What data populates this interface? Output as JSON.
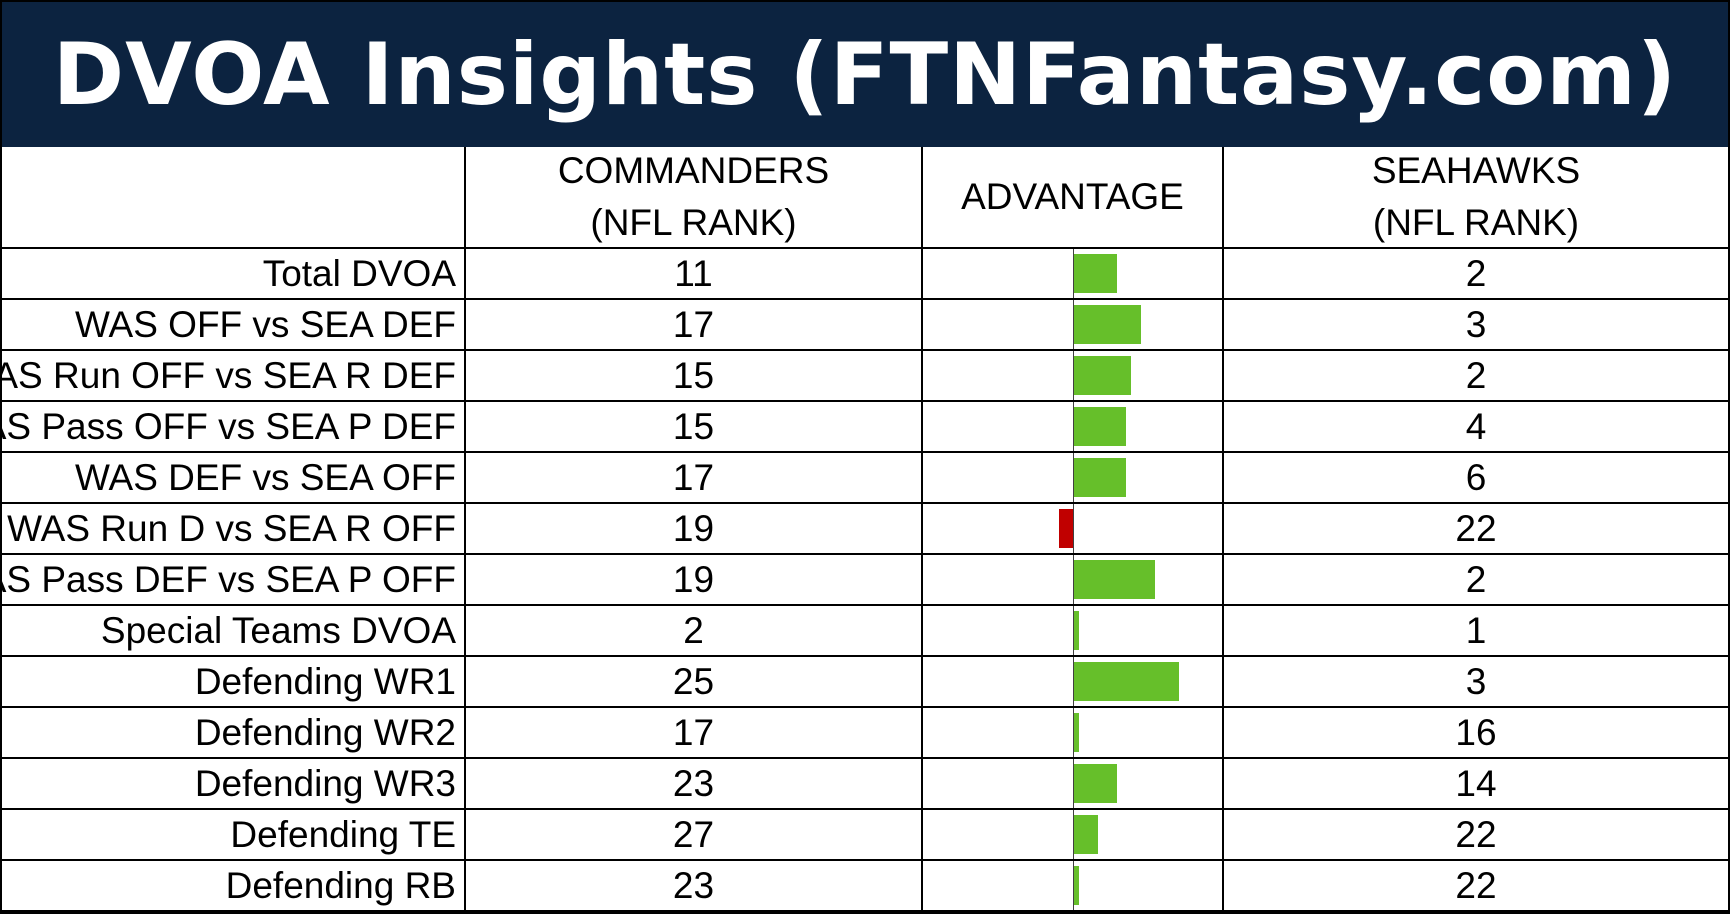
{
  "title": "DVOA Insights (FTNFantasy.com)",
  "headers": {
    "team1_line1": "COMMANDERS",
    "team1_line2": "(NFL RANK)",
    "advantage": "ADVANTAGE",
    "team2_line1": "SEAHAWKS",
    "team2_line2": "(NFL RANK)"
  },
  "colors": {
    "banner": "#0c2340",
    "positive": "#66bf2a",
    "negative": "#c00000"
  },
  "rows": [
    {
      "label": "Total DVOA",
      "commanders": "11",
      "seahawks": "2"
    },
    {
      "label": "WAS OFF vs SEA DEF",
      "commanders": "17",
      "seahawks": "3"
    },
    {
      "label": "WAS Run OFF vs SEA R DEF",
      "commanders": "15",
      "seahawks": "2"
    },
    {
      "label": "WAS Pass OFF vs SEA P DEF",
      "commanders": "15",
      "seahawks": "4"
    },
    {
      "label": "WAS DEF vs SEA OFF",
      "commanders": "17",
      "seahawks": "6"
    },
    {
      "label": "WAS Run D vs SEA R OFF",
      "commanders": "19",
      "seahawks": "22"
    },
    {
      "label": "WAS Pass DEF vs SEA P OFF",
      "commanders": "19",
      "seahawks": "2"
    },
    {
      "label": "Special Teams DVOA",
      "commanders": "2",
      "seahawks": "1"
    },
    {
      "label": "Defending WR1",
      "commanders": "25",
      "seahawks": "3"
    },
    {
      "label": "Defending WR2",
      "commanders": "17",
      "seahawks": "16"
    },
    {
      "label": "Defending WR3",
      "commanders": "23",
      "seahawks": "14"
    },
    {
      "label": "Defending TE",
      "commanders": "27",
      "seahawks": "22"
    },
    {
      "label": "Defending RB",
      "commanders": "23",
      "seahawks": "22"
    }
  ],
  "chart_data": {
    "type": "bar",
    "orientation": "horizontal",
    "categories": [
      "Total DVOA",
      "WAS OFF vs SEA DEF",
      "WAS Run OFF vs SEA R DEF",
      "WAS Pass OFF vs SEA P DEF",
      "WAS DEF vs SEA OFF",
      "WAS Run D vs SEA R OFF",
      "WAS Pass DEF vs SEA P OFF",
      "Special Teams DVOA",
      "Defending WR1",
      "Defending WR2",
      "Defending WR3",
      "Defending TE",
      "Defending RB"
    ],
    "values": [
      9,
      14,
      12,
      11,
      11,
      -3,
      17,
      1,
      22,
      1,
      9,
      5,
      1
    ],
    "title": "ADVANTAGE",
    "xlim": [
      -30,
      30
    ],
    "positive_color": "#66bf2a",
    "negative_color": "#c00000"
  }
}
